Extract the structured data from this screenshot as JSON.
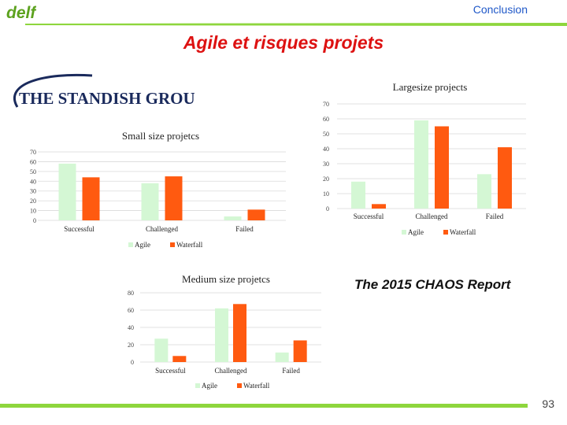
{
  "header": {
    "logo_text": "delf",
    "section": "Conclusion",
    "title": "Agile et risques projets"
  },
  "brand": {
    "name": "THE STANDISH GROUP"
  },
  "report": {
    "title": "The 2015 CHAOS Report"
  },
  "footer": {
    "page_number": "93"
  },
  "colors": {
    "accent_green": "#8ed63d",
    "title_red": "#dd1111",
    "section_blue": "#1f58c8",
    "agile": "#d4f7d4",
    "waterfall": "#ff5a10",
    "brand_navy": "#1a2a5c"
  },
  "chart_data": [
    {
      "type": "bar",
      "title": "Largesize projects",
      "categories": [
        "Successful",
        "Challenged",
        "Failed"
      ],
      "series": [
        {
          "name": "Agile",
          "values": [
            18,
            59,
            23
          ]
        },
        {
          "name": "Waterfall",
          "values": [
            3,
            55,
            41
          ]
        }
      ],
      "ylim": [
        0,
        70
      ],
      "yticks": [
        "0",
        "10",
        "20",
        "30",
        "40",
        "50",
        "60",
        "70"
      ],
      "grid": true,
      "legend": "bottom"
    },
    {
      "type": "bar",
      "title": "Small size projetcs",
      "categories": [
        "Successful",
        "Challenged",
        "Failed"
      ],
      "series": [
        {
          "name": "Agile",
          "values": [
            58,
            38,
            4
          ]
        },
        {
          "name": "Waterfall",
          "values": [
            44,
            45,
            11
          ]
        }
      ],
      "ylim": [
        0,
        70
      ],
      "yticks": [
        "0",
        "10",
        "20",
        "30",
        "40",
        "50",
        "60",
        "70"
      ],
      "grid": true,
      "legend": "bottom"
    },
    {
      "type": "bar",
      "title": "Medium size projetcs",
      "categories": [
        "Successful",
        "Challenged",
        "Failed"
      ],
      "series": [
        {
          "name": "Agile",
          "values": [
            27,
            62,
            11
          ]
        },
        {
          "name": "Waterfall",
          "values": [
            7,
            67,
            25
          ]
        }
      ],
      "ylim": [
        0,
        80
      ],
      "yticks": [
        "0",
        "20",
        "40",
        "60",
        "80"
      ],
      "grid": true,
      "legend": "bottom"
    }
  ]
}
